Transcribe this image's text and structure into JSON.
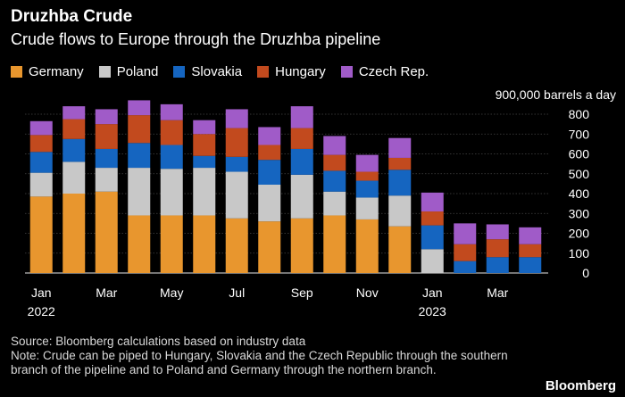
{
  "title": "Druzhba Crude",
  "subtitle": "Crude flows to Europe through the Druzhba pipeline",
  "source": "Source: Bloomberg calculations based on industry data",
  "note": "Note: Crude can be piped to Hungary, Slovakia and the Czech Republic through the southern branch of the pipeline and to Poland and Germany through the northern branch.",
  "brand": "Bloomberg",
  "legend": [
    {
      "name": "Germany",
      "color": "#e8962e"
    },
    {
      "name": "Poland",
      "color": "#c8c8c8"
    },
    {
      "name": "Slovakia",
      "color": "#1565c0"
    },
    {
      "name": "Hungary",
      "color": "#c24a1e"
    },
    {
      "name": "Czech Rep.",
      "color": "#a05bc8"
    }
  ],
  "chart_data": {
    "type": "bar",
    "stacked": true,
    "categories": [
      "Jan 2022",
      "Feb 2022",
      "Mar 2022",
      "Apr 2022",
      "May 2022",
      "Jun 2022",
      "Jul 2022",
      "Aug 2022",
      "Sep 2022",
      "Oct 2022",
      "Nov 2022",
      "Dec 2022",
      "Jan 2023",
      "Feb 2023",
      "Mar 2023",
      "Apr 2023"
    ],
    "x_tick_labels": [
      {
        "index": 0,
        "line1": "Jan",
        "line2": "2022"
      },
      {
        "index": 2,
        "line1": "Mar",
        "line2": ""
      },
      {
        "index": 4,
        "line1": "May",
        "line2": ""
      },
      {
        "index": 6,
        "line1": "Jul",
        "line2": ""
      },
      {
        "index": 8,
        "line1": "Sep",
        "line2": ""
      },
      {
        "index": 10,
        "line1": "Nov",
        "line2": ""
      },
      {
        "index": 12,
        "line1": "Jan",
        "line2": "2023"
      },
      {
        "index": 14,
        "line1": "Mar",
        "line2": ""
      }
    ],
    "series": [
      {
        "name": "Germany",
        "color": "#e8962e",
        "values": [
          385,
          400,
          410,
          290,
          290,
          290,
          275,
          260,
          275,
          290,
          270,
          235,
          0,
          0,
          0,
          0
        ]
      },
      {
        "name": "Poland",
        "color": "#c8c8c8",
        "values": [
          120,
          160,
          120,
          240,
          235,
          240,
          235,
          185,
          220,
          120,
          110,
          155,
          120,
          0,
          0,
          0
        ]
      },
      {
        "name": "Slovakia",
        "color": "#1565c0",
        "values": [
          105,
          115,
          95,
          125,
          120,
          60,
          75,
          125,
          130,
          105,
          85,
          130,
          120,
          60,
          80,
          80
        ]
      },
      {
        "name": "Hungary",
        "color": "#c24a1e",
        "values": [
          85,
          100,
          125,
          140,
          125,
          110,
          145,
          75,
          105,
          80,
          45,
          60,
          70,
          85,
          90,
          65
        ]
      },
      {
        "name": "Czech Rep.",
        "color": "#a05bc8",
        "values": [
          70,
          65,
          75,
          75,
          80,
          70,
          95,
          90,
          110,
          95,
          85,
          100,
          95,
          105,
          75,
          85
        ]
      }
    ],
    "y_unit_label": "900,000 barrels a day",
    "yticks": [
      0,
      100,
      200,
      300,
      400,
      500,
      600,
      700,
      800
    ],
    "ylim": [
      0,
      900
    ]
  }
}
